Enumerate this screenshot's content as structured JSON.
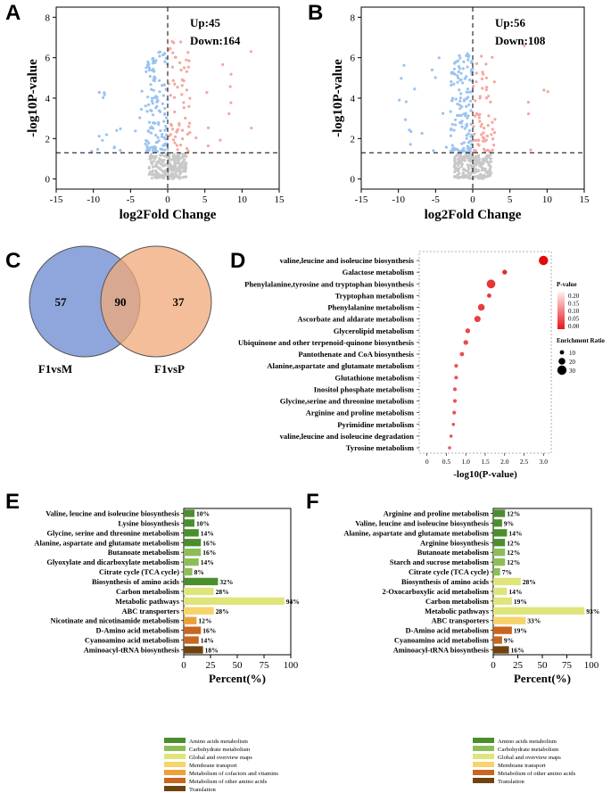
{
  "panels": {
    "a": "A",
    "b": "B",
    "c": "C",
    "d": "D",
    "e": "E",
    "f": "F"
  },
  "chart_data": [
    {
      "id": "A",
      "type": "scatter",
      "title": "",
      "xlabel": "log2Fold Change",
      "ylabel": "-log10P-value",
      "xlim": [
        -15,
        15
      ],
      "ylim": [
        -0.5,
        8.5
      ],
      "xticks": [
        "-15",
        "-10",
        "-5",
        "0",
        "5",
        "10",
        "15"
      ],
      "yticks": [
        "0",
        "2",
        "4",
        "6",
        "8"
      ],
      "annotation_up": "Up:45",
      "annotation_down": "Down:164",
      "threshold_y": 1.3,
      "threshold_x": 0,
      "colors": {
        "up": "#f4a7a0",
        "down": "#9cc3f0",
        "ns": "#c8c8c8"
      }
    },
    {
      "id": "B",
      "type": "scatter",
      "title": "",
      "xlabel": "log2Fold Change",
      "ylabel": "-log10P-value",
      "xlim": [
        -15,
        15
      ],
      "ylim": [
        -0.5,
        8.5
      ],
      "xticks": [
        "-15",
        "-10",
        "-5",
        "0",
        "5",
        "10",
        "15"
      ],
      "yticks": [
        "0",
        "2",
        "4",
        "6",
        "8"
      ],
      "annotation_up": "Up:56",
      "annotation_down": "Down:108",
      "threshold_y": 1.3,
      "threshold_x": 0,
      "colors": {
        "up": "#f4a7a0",
        "down": "#9cc3f0",
        "ns": "#c8c8c8"
      }
    },
    {
      "id": "C",
      "type": "venn",
      "sets": [
        {
          "name": "F1vsM",
          "only": "57",
          "color": "#7b96d6"
        },
        {
          "name": "F1vsP",
          "only": "37",
          "color": "#f0a878"
        }
      ],
      "shared": "90"
    },
    {
      "id": "D",
      "type": "scatter",
      "xlabel": "-log10(P-value)",
      "xlim": [
        -0.2,
        3.2
      ],
      "xticks": [
        "0",
        "0.5",
        "1.0",
        "1.5",
        "2.0",
        "2.5",
        "3.0"
      ],
      "categories": [
        "valine,leucine and isoleucine biosynthesis",
        "Galactose metabolism",
        "Phenylalanine,tyrosine and tryptophan biosynthesis",
        "Tryptophan metabolism",
        "Phenylalanine metabolism",
        "Ascorbate and aldarate metabolism",
        "Glycerolipid metabolism",
        "Ubiquinone and other terpenoid-quinone biosynthesis",
        "Pantothenate and CoA biosynthesis",
        "Alanine,aspartate and glutamate metabolism",
        "Glutathione metabolism",
        "Inositol phosphate metabolism",
        "Glycine,serine and threonine metabolism",
        "Arginine and proline metabolism",
        "Pyrimidine metabolism",
        "valine,leucine and isoleucine degradation",
        "Tyrosine metabolism"
      ],
      "values": [
        3.0,
        2.0,
        1.65,
        1.6,
        1.4,
        1.3,
        1.05,
        1.0,
        0.9,
        0.75,
        0.75,
        0.72,
        0.72,
        0.7,
        0.68,
        0.62,
        0.58
      ],
      "ratio": [
        30,
        12,
        28,
        10,
        20,
        18,
        12,
        12,
        10,
        8,
        8,
        8,
        8,
        8,
        6,
        6,
        6
      ],
      "legend_pvalue_title": "P-value",
      "legend_pvalue_ticks": [
        "0.20",
        "0.15",
        "0.10",
        "0.05",
        "0.00"
      ],
      "legend_ratio_title": "Enrichment Ratio",
      "legend_ratio_ticks": [
        "10",
        "20",
        "30"
      ]
    },
    {
      "id": "E",
      "type": "bar",
      "orientation": "horizontal",
      "xlabel": "Percent(%)",
      "xlim": [
        0,
        100
      ],
      "xticks": [
        "0",
        "25",
        "50",
        "75",
        "100"
      ],
      "categories": [
        "Valine, leucine and isoleucine biosynthesis",
        "Lysine biosynthesis",
        "Glycine, serine and threonine metabolism",
        "Alanine, aspartate and glutamate metabolism",
        "Butanoate metabolism",
        "Glyoxylate and dicarboxylate metabolism",
        "Citrate cycle (TCA cycle)",
        "Biosynthesis of amino acids",
        "Carbon metabolism",
        "Metabolic pathways",
        "ABC transporters",
        "Nicotinate and nicotinamide metabolism",
        "D-Amino acid metabolism",
        "Cyanoamino acid metabolism",
        "Aminoacyl-tRNA biosynthesis"
      ],
      "values": [
        10,
        10,
        14,
        16,
        16,
        14,
        8,
        32,
        28,
        94,
        28,
        12,
        16,
        14,
        18
      ],
      "labels": [
        "10%",
        "10%",
        "14%",
        "16%",
        "16%",
        "14%",
        "8%",
        "32%",
        "28%",
        "94%",
        "28%",
        "12%",
        "16%",
        "14%",
        "18%"
      ],
      "groups": [
        0,
        0,
        0,
        0,
        1,
        1,
        1,
        0,
        2,
        2,
        3,
        4,
        5,
        5,
        6
      ],
      "legend": [
        {
          "name": "Amino acids metabolism",
          "color": "#4b8e2e"
        },
        {
          "name": "Carbohydrate metabolism",
          "color": "#8dbd58"
        },
        {
          "name": "Global and overview maps",
          "color": "#dfe57a"
        },
        {
          "name": "Membrane transport",
          "color": "#f7d36c"
        },
        {
          "name": "Metabolism of cofactors and vitamins",
          "color": "#eda03a"
        },
        {
          "name": "Metabolism of other amino acids",
          "color": "#c9661f"
        },
        {
          "name": "Translation",
          "color": "#6f4310"
        }
      ]
    },
    {
      "id": "F",
      "type": "bar",
      "orientation": "horizontal",
      "xlabel": "Percent(%)",
      "xlim": [
        0,
        100
      ],
      "xticks": [
        "0",
        "25",
        "50",
        "75",
        "100"
      ],
      "categories": [
        "Arginine and proline metabolism",
        "Valine, leucine and isoleucine biosynthesis",
        "Alanine, aspartate and glutamate metabolism",
        "Arginine biosynthesis",
        "Butanoate metabolism",
        "Starch and sucrose metabolism",
        "Citrate cycle (TCA cycle)",
        "Biosynthesis of amino acids",
        "2-Oxocarboxylic acid metabolism",
        "Carbon metabolism",
        "Metabolic pathways",
        "ABC transporters",
        "D-Amino acid metabolism",
        "Cyanoamino acid metabolism",
        "Aminoacyl-tRNA biosynthesis"
      ],
      "values": [
        12,
        9,
        14,
        12,
        12,
        12,
        7,
        28,
        14,
        19,
        93,
        33,
        19,
        9,
        16
      ],
      "labels": [
        "12%",
        "9%",
        "14%",
        "12%",
        "12%",
        "12%",
        "7%",
        "28%",
        "14%",
        "19%",
        "93%",
        "33%",
        "19%",
        "9%",
        "16%"
      ],
      "groups": [
        0,
        0,
        0,
        0,
        1,
        1,
        1,
        2,
        2,
        2,
        2,
        3,
        4,
        4,
        5
      ],
      "legend": [
        {
          "name": "Amino acids metabolism",
          "color": "#4b8e2e"
        },
        {
          "name": "Carbohydrate metabolism",
          "color": "#8dbd58"
        },
        {
          "name": "Global and overview maps",
          "color": "#dfe57a"
        },
        {
          "name": "Membrane transport",
          "color": "#f7d36c"
        },
        {
          "name": "Metabolism of other amino acids",
          "color": "#c9661f"
        },
        {
          "name": "Translation",
          "color": "#6f4310"
        }
      ]
    }
  ]
}
